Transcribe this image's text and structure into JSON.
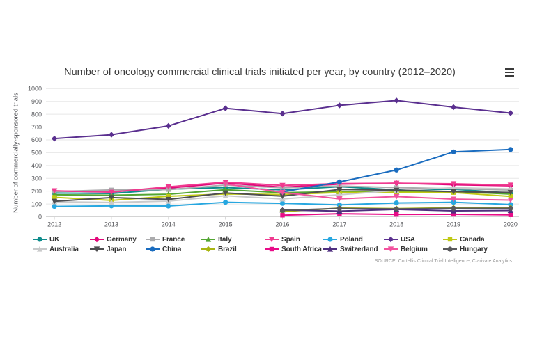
{
  "chart_data": {
    "type": "line",
    "title": "Number of oncology commercial clinical trials initiated per year, by country (2012–2020)",
    "xlabel": "",
    "ylabel": "Number of commercially-sponsored trials",
    "categories": [
      "2012",
      "2013",
      "2014",
      "2015",
      "2016",
      "2017",
      "2018",
      "2019",
      "2020"
    ],
    "ylim": [
      0,
      1000
    ],
    "ytick_interval": 100,
    "yticks": [
      0,
      100,
      200,
      300,
      400,
      500,
      600,
      700,
      800,
      900,
      1000
    ],
    "grid": "horizontal",
    "legend_position": "bottom",
    "source": "SOURCE: Cortellis Clinical Trial Intelligence, Clarivate Analytics",
    "series": [
      {
        "name": "UK",
        "color": "#0e8c8c",
        "marker": "circle",
        "values": [
          185,
          182,
          215,
          228,
          210,
          235,
          210,
          215,
          185
        ]
      },
      {
        "name": "Germany",
        "color": "#e2087a",
        "marker": "diamond",
        "values": [
          200,
          196,
          224,
          263,
          231,
          255,
          262,
          250,
          242
        ]
      },
      {
        "name": "France",
        "color": "#ababad",
        "marker": "square",
        "values": [
          197,
          210,
          212,
          248,
          226,
          240,
          228,
          219,
          209
        ]
      },
      {
        "name": "Italy",
        "color": "#52a532",
        "marker": "triangle",
        "values": [
          172,
          168,
          176,
          211,
          188,
          196,
          193,
          197,
          177
        ]
      },
      {
        "name": "Spain",
        "color": "#ef3a8f",
        "marker": "triangle-down",
        "values": [
          203,
          192,
          234,
          270,
          245,
          259,
          262,
          258,
          247
        ]
      },
      {
        "name": "Poland",
        "color": "#27a7e0",
        "marker": "circle",
        "values": [
          81,
          85,
          84,
          113,
          105,
          93,
          108,
          113,
          96
        ]
      },
      {
        "name": "USA",
        "color": "#5a2f8f",
        "marker": "diamond",
        "values": [
          610,
          640,
          709,
          846,
          805,
          869,
          907,
          855,
          809
        ]
      },
      {
        "name": "Canada",
        "color": "#bfc915",
        "marker": "square",
        "values": [
          152,
          128,
          160,
          178,
          174,
          189,
          191,
          189,
          159
        ]
      },
      {
        "name": "Australia",
        "color": "#c9cacb",
        "marker": "triangle",
        "values": [
          117,
          112,
          122,
          164,
          139,
          172,
          205,
          227,
          217
        ]
      },
      {
        "name": "Japan",
        "color": "#4e4e50",
        "marker": "triangle-down",
        "values": [
          121,
          150,
          136,
          186,
          161,
          213,
          207,
          196,
          190
        ]
      },
      {
        "name": "China",
        "color": "#1a6cbf",
        "marker": "circle",
        "values": [
          null,
          null,
          null,
          null,
          194,
          272,
          365,
          506,
          525
        ]
      },
      {
        "name": "Brazil",
        "color": "#a9b612",
        "marker": "diamond",
        "values": [
          null,
          null,
          null,
          null,
          40,
          68,
          64,
          70,
          72
        ]
      },
      {
        "name": "South Africa",
        "color": "#e80c88",
        "marker": "square",
        "values": [
          null,
          null,
          null,
          null,
          12,
          24,
          18,
          19,
          15
        ]
      },
      {
        "name": "Switzerland",
        "color": "#4f2f7f",
        "marker": "triangle",
        "values": [
          null,
          null,
          null,
          null,
          53,
          44,
          58,
          46,
          49
        ]
      },
      {
        "name": "Belgium",
        "color": "#f2529e",
        "marker": "triangle-down",
        "values": [
          null,
          null,
          null,
          257,
          190,
          140,
          158,
          138,
          130
        ]
      },
      {
        "name": "Hungary",
        "color": "#59595c",
        "marker": "circle",
        "values": [
          null,
          null,
          null,
          null,
          50,
          65,
          61,
          66,
          66
        ]
      }
    ],
    "legend_rows": [
      [
        "UK",
        "Germany",
        "France",
        "Italy",
        "Spain",
        "Poland",
        "USA",
        "Canada"
      ],
      [
        "Australia",
        "Japan",
        "China",
        "Brazil",
        "South Africa",
        "Switzerland",
        "Belgium",
        "Hungary"
      ]
    ]
  },
  "ui": {
    "menu_icon": "hamburger-menu-icon"
  }
}
